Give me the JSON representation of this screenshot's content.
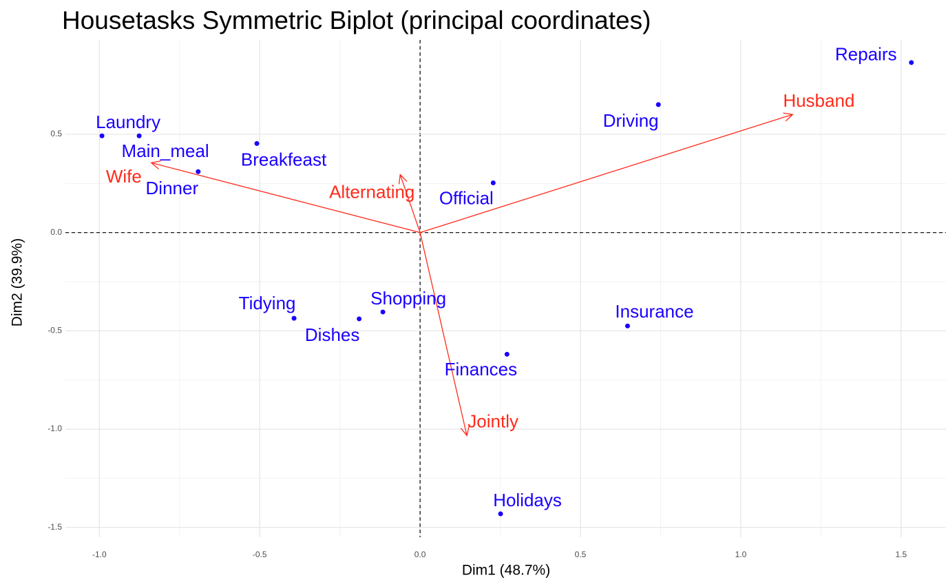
{
  "chart_data": {
    "type": "biplot",
    "title": "Housetasks Symmetric Biplot (principal coordinates)",
    "xlabel": "Dim1 (48.7%)",
    "ylabel": "Dim2 (39.9%)",
    "xlim": [
      -1.106,
      1.64
    ],
    "ylim": [
      -1.55,
      0.98
    ],
    "xticks": [
      {
        "value": -1,
        "label": "-1.0"
      },
      -0.5,
      {
        "value": 0,
        "label": "0.0"
      },
      0.5,
      {
        "value": 1,
        "label": "1.0"
      },
      1.5
    ],
    "yticks": [
      -1.5,
      {
        "value": -1,
        "label": "-1.0"
      },
      -0.5,
      {
        "value": 0,
        "label": "0.0"
      },
      0.5
    ],
    "grid": true,
    "point_color": "#1a00ff",
    "points": [
      {
        "label": "Laundry",
        "x": -0.992,
        "y": 0.492
      },
      {
        "label": "Main_meal",
        "x": -0.876,
        "y": 0.492
      },
      {
        "label": "Dinner",
        "x": -0.692,
        "y": 0.31
      },
      {
        "label": "Breakfeast",
        "x": -0.509,
        "y": 0.453
      },
      {
        "label": "Tidying",
        "x": -0.393,
        "y": -0.436
      },
      {
        "label": "Dishes",
        "x": -0.19,
        "y": -0.439
      },
      {
        "label": "Shopping",
        "x": -0.116,
        "y": -0.404
      },
      {
        "label": "Official",
        "x": 0.228,
        "y": 0.253
      },
      {
        "label": "Driving",
        "x": 0.743,
        "y": 0.651
      },
      {
        "label": "Finances",
        "x": 0.271,
        "y": -0.619
      },
      {
        "label": "Insurance",
        "x": 0.647,
        "y": -0.475
      },
      {
        "label": "Repairs",
        "x": 1.532,
        "y": 0.865
      },
      {
        "label": "Holidays",
        "x": 0.251,
        "y": -1.431
      }
    ],
    "arrow_color": "#ff2a1a",
    "arrows": [
      {
        "label": "Wife",
        "x": -0.838,
        "y": 0.355
      },
      {
        "label": "Alternating",
        "x": -0.062,
        "y": 0.295
      },
      {
        "label": "Jointly",
        "x": 0.146,
        "y": -1.033
      },
      {
        "label": "Husband",
        "x": 1.162,
        "y": 0.601
      }
    ]
  }
}
